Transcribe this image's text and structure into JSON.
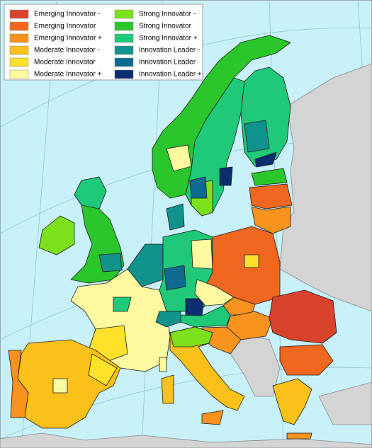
{
  "legend": {
    "items": [
      {
        "label": "Emerging Innovator -",
        "color": "#d9432c"
      },
      {
        "label": "Emerging Innovator",
        "color": "#f0671f"
      },
      {
        "label": "Emerging Innovator +",
        "color": "#f7931e"
      },
      {
        "label": "Moderate Innovator -",
        "color": "#f9c11a"
      },
      {
        "label": "Moderate Innovator",
        "color": "#fde12a"
      },
      {
        "label": "Moderate Innovator +",
        "color": "#fefaa0"
      },
      {
        "label": "Strong Innovator -",
        "color": "#7ee11d"
      },
      {
        "label": "Strong Innovator",
        "color": "#2bc62b"
      },
      {
        "label": "Strong Innovator +",
        "color": "#20c97a"
      },
      {
        "label": "Innovation Leader -",
        "color": "#12928c"
      },
      {
        "label": "Innovation Leader",
        "color": "#0d6a8f"
      },
      {
        "label": "Innovation Leader +",
        "color": "#0a2e6e"
      }
    ]
  }
}
